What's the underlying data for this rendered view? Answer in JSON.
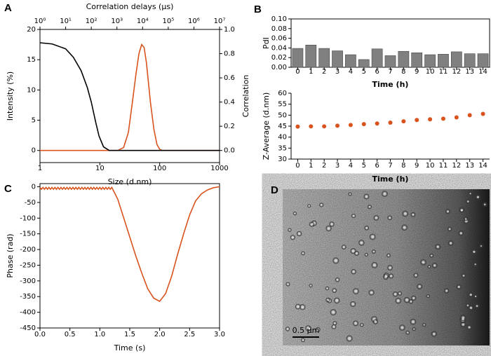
{
  "panel_labels": [
    "A",
    "B",
    "C",
    "D"
  ],
  "image_panel": {
    "scale_bar": "0.5 μm"
  },
  "chart_data": [
    {
      "type": "line",
      "xlabel": "Size (d.nm)",
      "x2label": "Correlation delays (μs)",
      "ylabel": "Intensity (%)",
      "y2label": "Correlation",
      "xlog": true,
      "x2log": true,
      "ycolor": "#d9531e",
      "xlim": [
        1,
        1000
      ],
      "xticks": [
        1,
        10,
        100,
        1000
      ],
      "x2lim": [
        1,
        10000000
      ],
      "x2ticks": [
        {
          "value": 1,
          "label": "10⁰"
        },
        {
          "value": 10,
          "label": "10¹"
        },
        {
          "value": 100,
          "label": "10²"
        },
        {
          "value": 1000,
          "label": "10³"
        },
        {
          "value": 10000,
          "label": "10⁴"
        },
        {
          "value": 100000,
          "label": "10⁵"
        },
        {
          "value": 1000000,
          "label": "10⁶"
        },
        {
          "value": 10000000,
          "label": "10⁷"
        }
      ],
      "ylim": [
        -2,
        20
      ],
      "yticks": [
        0,
        5,
        10,
        15,
        20
      ],
      "y2lim": [
        -0.1,
        1.0
      ],
      "y2ticks": [
        {
          "value": 0,
          "label": "0.0"
        },
        {
          "value": 0.2,
          "label": "0.2"
        },
        {
          "value": 0.4,
          "label": "0.4"
        },
        {
          "value": 0.6,
          "label": "0.6"
        },
        {
          "value": 0.8,
          "label": "0.8"
        },
        {
          "value": 1,
          "label": "1.0"
        }
      ],
      "series": [
        {
          "color": "#d9531e",
          "x": [
            1,
            20,
            25,
            30,
            35,
            40,
            45,
            50,
            55,
            60,
            70,
            80,
            90,
            100,
            110,
            1000
          ],
          "values": [
            0,
            0,
            0.5,
            3,
            8,
            12.5,
            16,
            17.5,
            17,
            14.5,
            8,
            3.5,
            1,
            0.2,
            0,
            0
          ]
        },
        {
          "color": "#000000",
          "axis": "y2",
          "xaxis": "x2",
          "x": [
            1,
            3,
            10,
            20,
            40,
            70,
            100,
            150,
            200,
            300,
            500,
            1000,
            10000,
            10000000
          ],
          "values": [
            0.89,
            0.88,
            0.84,
            0.77,
            0.66,
            0.52,
            0.4,
            0.23,
            0.12,
            0.03,
            0,
            0,
            0,
            0
          ]
        }
      ]
    },
    {
      "type": "bar",
      "xlabel": "Time (h)",
      "ylabel": "PdI",
      "color": "#808080",
      "x": [
        0,
        1,
        2,
        3,
        4,
        5,
        6,
        7,
        8,
        9,
        10,
        11,
        12,
        13,
        14
      ],
      "values": [
        0.039,
        0.046,
        0.039,
        0.034,
        0.026,
        0.016,
        0.038,
        0.024,
        0.033,
        0.03,
        0.026,
        0.027,
        0.032,
        0.028,
        0.028
      ],
      "xlim": [
        -0.5,
        14.5
      ],
      "xticks": [
        0,
        1,
        2,
        3,
        4,
        5,
        6,
        7,
        8,
        9,
        10,
        11,
        12,
        13,
        14
      ],
      "ylim": [
        0,
        0.1
      ],
      "yticks": [
        {
          "value": 0,
          "label": "0.00"
        },
        {
          "value": 0.02,
          "label": "0.02"
        },
        {
          "value": 0.04,
          "label": "0.04"
        },
        {
          "value": 0.06,
          "label": "0.06"
        },
        {
          "value": 0.08,
          "label": "0.08"
        },
        {
          "value": 0.1,
          "label": "0.10"
        }
      ]
    },
    {
      "type": "scatter",
      "xlabel": "Time (h)",
      "ylabel": "Z-Average (d.nm)",
      "color": "#d9531e",
      "ycolor": "#d9531e",
      "x": [
        0,
        1,
        2,
        3,
        4,
        5,
        6,
        7,
        8,
        9,
        10,
        11,
        12,
        13,
        14
      ],
      "values": [
        44.8,
        44.9,
        44.9,
        45.2,
        45.5,
        45.9,
        46.2,
        46.6,
        47.2,
        47.8,
        48.1,
        48.4,
        49.0,
        50.0,
        50.6
      ],
      "xlim": [
        -0.5,
        14.5
      ],
      "xticks": [
        0,
        1,
        2,
        3,
        4,
        5,
        6,
        7,
        8,
        9,
        10,
        11,
        12,
        13,
        14
      ],
      "ylim": [
        30,
        60
      ],
      "yticks": [
        30,
        35,
        40,
        45,
        50,
        55,
        60
      ]
    },
    {
      "type": "line",
      "xlabel": "Time (s)",
      "ylabel": "Phase (rad)",
      "xlim": [
        0,
        3
      ],
      "xticks": [
        {
          "value": 0,
          "label": "0.0"
        },
        0.5,
        {
          "value": 1,
          "label": "1.0"
        },
        1.5,
        {
          "value": 2,
          "label": "2.0"
        },
        2.5,
        {
          "value": 3,
          "label": "3.0"
        }
      ],
      "ylim": [
        -450,
        10
      ],
      "yticks": [
        0,
        -50,
        -100,
        -150,
        -200,
        -250,
        -300,
        -350,
        -400,
        -450
      ],
      "series": [
        {
          "color": "#d9531e",
          "x": [
            0,
            0.025,
            0.05,
            0.075,
            0.1,
            0.125,
            0.15,
            0.175,
            0.2,
            0.225,
            0.25,
            0.275,
            0.3,
            0.325,
            0.35,
            0.375,
            0.4,
            0.425,
            0.45,
            0.475,
            0.5,
            0.525,
            0.55,
            0.575,
            0.6,
            0.625,
            0.65,
            0.675,
            0.7,
            0.725,
            0.75,
            0.775,
            0.8,
            0.825,
            0.85,
            0.875,
            0.9,
            0.925,
            0.95,
            0.975,
            1.0,
            1.025,
            1.05,
            1.075,
            1.1,
            1.125,
            1.15,
            1.175,
            1.2,
            1.3,
            1.4,
            1.5,
            1.6,
            1.7,
            1.8,
            1.9,
            2.0,
            2.1,
            2.2,
            2.3,
            2.4,
            2.5,
            2.6,
            2.7,
            2.8,
            2.9,
            3.0
          ],
          "values": [
            -2,
            -8,
            -2,
            -8,
            -2,
            -8,
            -2,
            -8,
            -2,
            -8,
            -2,
            -8,
            -2,
            -8,
            -2,
            -8,
            -2,
            -8,
            -2,
            -8,
            -2,
            -8,
            -2,
            -8,
            -2,
            -8,
            -2,
            -8,
            -2,
            -8,
            -2,
            -8,
            -2,
            -8,
            -2,
            -8,
            -2,
            -8,
            -2,
            -8,
            -2,
            -8,
            -2,
            -8,
            -2,
            -8,
            -2,
            -8,
            -2,
            -40,
            -100,
            -160,
            -220,
            -275,
            -325,
            -355,
            -365,
            -340,
            -285,
            -215,
            -150,
            -90,
            -45,
            -22,
            -10,
            -3,
            0
          ]
        }
      ]
    }
  ]
}
